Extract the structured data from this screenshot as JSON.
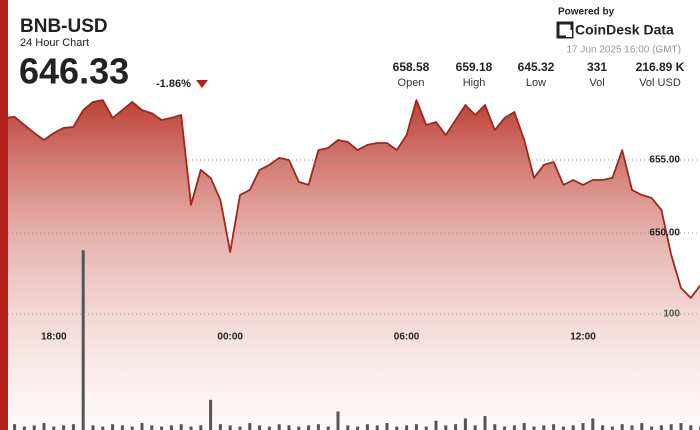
{
  "header": {
    "title": "BNB-USD",
    "subtitle": "24 Hour Chart",
    "price": "646.33",
    "change": "-1.86%"
  },
  "stats": [
    {
      "value": "658.58",
      "label": "Open"
    },
    {
      "value": "659.18",
      "label": "High"
    },
    {
      "value": "645.32",
      "label": "Low"
    },
    {
      "value": "331",
      "label": "Vol"
    },
    {
      "value": "216.89 K",
      "label": "Vol USD"
    }
  ],
  "branding": {
    "powered": "Powered by",
    "name": "CoinDesk Data",
    "timestamp": "17 Jun 2025 16:00 (GMT)"
  },
  "chart_data": {
    "type": "line",
    "xlim": [
      0,
      72
    ],
    "xticks": [
      {
        "value": 6,
        "label": "18:00"
      },
      {
        "value": 24,
        "label": "00:00"
      },
      {
        "value": 42,
        "label": "06:00"
      },
      {
        "value": 60,
        "label": "12:00"
      }
    ],
    "ylim": [
      636.5,
      661.85
    ],
    "yticks": [
      {
        "value": 650,
        "label": "650.00"
      },
      {
        "value": 655,
        "label": "655.00"
      }
    ],
    "y2lim": [
      0,
      319
    ],
    "y2ticks": [
      100
    ],
    "grid": true,
    "series": [
      {
        "color": "#a3261c",
        "values": [
          657.9,
          657.88,
          657.95,
          657.4,
          656.85,
          656.37,
          656.85,
          657.2,
          657.26,
          658.42,
          658.97,
          659.1,
          657.88,
          658.42,
          658.97,
          658.42,
          658.2,
          657.74,
          657.88,
          658.08,
          651.92,
          654.32,
          653.77,
          652.26,
          648.7,
          652.6,
          652.95,
          654.32,
          654.66,
          655.14,
          655.0,
          653.5,
          653.29,
          655.68,
          655.82,
          656.37,
          656.23,
          655.68,
          656.03,
          656.16,
          656.16,
          655.68,
          656.71,
          659.11,
          657.4,
          657.6,
          656.71,
          657.74,
          658.77,
          658.08,
          658.77,
          657.05,
          657.88,
          658.29,
          656.37,
          653.77,
          654.66,
          654.86,
          653.29,
          653.63,
          653.29,
          653.63,
          653.63,
          653.77,
          655.68,
          652.95,
          652.6,
          652.4,
          651.58,
          648.5,
          646.23,
          645.55,
          646.44
        ]
      },
      {
        "type": "bar",
        "axis": "y2",
        "color": "#555555",
        "values": [
          4,
          3,
          5,
          3,
          4,
          6,
          3,
          4,
          5,
          155,
          4,
          3,
          5,
          4,
          3,
          6,
          4,
          3,
          4,
          5,
          3,
          4,
          26,
          5,
          4,
          3,
          6,
          4,
          3,
          5,
          4,
          3,
          4,
          5,
          3,
          16,
          4,
          3,
          5,
          4,
          6,
          3,
          4,
          5,
          3,
          8,
          4,
          5,
          10,
          4,
          12,
          5,
          3,
          4,
          6,
          3,
          4,
          5,
          3,
          4,
          6,
          10,
          4,
          3,
          5,
          4,
          6,
          3,
          4,
          5,
          6,
          4,
          3
        ]
      }
    ]
  }
}
